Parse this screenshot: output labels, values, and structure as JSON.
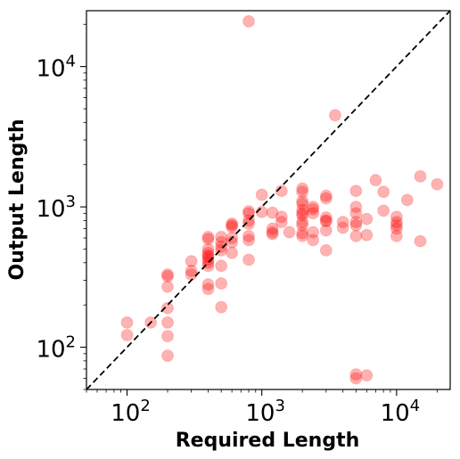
{
  "chart_data": {
    "type": "scatter",
    "title": "",
    "xlabel": "Required Length",
    "ylabel": "Output Length",
    "xscale": "log",
    "yscale": "log",
    "xlim": [
      50,
      25000
    ],
    "ylim": [
      50,
      25000
    ],
    "xticks": [
      {
        "value": 100,
        "base": "10",
        "exp": "2"
      },
      {
        "value": 1000,
        "base": "10",
        "exp": "3"
      },
      {
        "value": 10000,
        "base": "10",
        "exp": "4"
      }
    ],
    "yticks": [
      {
        "value": 100,
        "base": "10",
        "exp": "2"
      },
      {
        "value": 1000,
        "base": "10",
        "exp": "3"
      },
      {
        "value": 10000,
        "base": "10",
        "exp": "4"
      }
    ],
    "reference_line": {
      "style": "dashed",
      "color": "#000000",
      "description": "y = x"
    },
    "grid": false,
    "legend": "none",
    "marker_color": "#ff0000",
    "points": [
      {
        "x": 100,
        "y": 150
      },
      {
        "x": 100,
        "y": 122
      },
      {
        "x": 150,
        "y": 150
      },
      {
        "x": 200,
        "y": 330
      },
      {
        "x": 200,
        "y": 320
      },
      {
        "x": 200,
        "y": 270
      },
      {
        "x": 200,
        "y": 190
      },
      {
        "x": 200,
        "y": 150
      },
      {
        "x": 200,
        "y": 120
      },
      {
        "x": 200,
        "y": 87
      },
      {
        "x": 300,
        "y": 410
      },
      {
        "x": 300,
        "y": 350
      },
      {
        "x": 300,
        "y": 330
      },
      {
        "x": 400,
        "y": 610
      },
      {
        "x": 400,
        "y": 590
      },
      {
        "x": 400,
        "y": 500
      },
      {
        "x": 400,
        "y": 470
      },
      {
        "x": 400,
        "y": 450
      },
      {
        "x": 400,
        "y": 440
      },
      {
        "x": 400,
        "y": 420
      },
      {
        "x": 400,
        "y": 400
      },
      {
        "x": 400,
        "y": 380
      },
      {
        "x": 400,
        "y": 280
      },
      {
        "x": 400,
        "y": 260
      },
      {
        "x": 500,
        "y": 610
      },
      {
        "x": 500,
        "y": 560
      },
      {
        "x": 500,
        "y": 520
      },
      {
        "x": 500,
        "y": 490
      },
      {
        "x": 500,
        "y": 380
      },
      {
        "x": 500,
        "y": 285
      },
      {
        "x": 500,
        "y": 193
      },
      {
        "x": 600,
        "y": 760
      },
      {
        "x": 600,
        "y": 740
      },
      {
        "x": 600,
        "y": 720
      },
      {
        "x": 600,
        "y": 600
      },
      {
        "x": 600,
        "y": 560
      },
      {
        "x": 600,
        "y": 470
      },
      {
        "x": 800,
        "y": 930
      },
      {
        "x": 800,
        "y": 900
      },
      {
        "x": 800,
        "y": 800
      },
      {
        "x": 800,
        "y": 760
      },
      {
        "x": 800,
        "y": 620
      },
      {
        "x": 800,
        "y": 580
      },
      {
        "x": 800,
        "y": 420
      },
      {
        "x": 800,
        "y": 21000
      },
      {
        "x": 1000,
        "y": 1220
      },
      {
        "x": 1000,
        "y": 920
      },
      {
        "x": 1200,
        "y": 910
      },
      {
        "x": 1200,
        "y": 700
      },
      {
        "x": 1200,
        "y": 660
      },
      {
        "x": 1200,
        "y": 640
      },
      {
        "x": 1400,
        "y": 1300
      },
      {
        "x": 1400,
        "y": 850
      },
      {
        "x": 1400,
        "y": 780
      },
      {
        "x": 1600,
        "y": 660
      },
      {
        "x": 2000,
        "y": 1350
      },
      {
        "x": 2000,
        "y": 1280
      },
      {
        "x": 2000,
        "y": 1100
      },
      {
        "x": 2000,
        "y": 1050
      },
      {
        "x": 2000,
        "y": 950
      },
      {
        "x": 2000,
        "y": 900
      },
      {
        "x": 2000,
        "y": 870
      },
      {
        "x": 2000,
        "y": 780
      },
      {
        "x": 2000,
        "y": 740
      },
      {
        "x": 2000,
        "y": 650
      },
      {
        "x": 2000,
        "y": 620
      },
      {
        "x": 2400,
        "y": 1000
      },
      {
        "x": 2400,
        "y": 960
      },
      {
        "x": 2400,
        "y": 900
      },
      {
        "x": 2400,
        "y": 660
      },
      {
        "x": 2400,
        "y": 580
      },
      {
        "x": 3000,
        "y": 1200
      },
      {
        "x": 3000,
        "y": 1150
      },
      {
        "x": 3000,
        "y": 840
      },
      {
        "x": 3000,
        "y": 800
      },
      {
        "x": 3000,
        "y": 790
      },
      {
        "x": 3000,
        "y": 680
      },
      {
        "x": 3000,
        "y": 490
      },
      {
        "x": 3500,
        "y": 4500
      },
      {
        "x": 4000,
        "y": 780
      },
      {
        "x": 4000,
        "y": 710
      },
      {
        "x": 5000,
        "y": 1300
      },
      {
        "x": 5000,
        "y": 1000
      },
      {
        "x": 5000,
        "y": 900
      },
      {
        "x": 5000,
        "y": 780
      },
      {
        "x": 5000,
        "y": 740
      },
      {
        "x": 5000,
        "y": 620
      },
      {
        "x": 5000,
        "y": 64
      },
      {
        "x": 5000,
        "y": 60
      },
      {
        "x": 6000,
        "y": 820
      },
      {
        "x": 6000,
        "y": 630
      },
      {
        "x": 6000,
        "y": 63
      },
      {
        "x": 7000,
        "y": 1550
      },
      {
        "x": 8000,
        "y": 1280
      },
      {
        "x": 8000,
        "y": 940
      },
      {
        "x": 10000,
        "y": 850
      },
      {
        "x": 10000,
        "y": 780
      },
      {
        "x": 10000,
        "y": 740
      },
      {
        "x": 10000,
        "y": 700
      },
      {
        "x": 10000,
        "y": 620
      },
      {
        "x": 12000,
        "y": 1120
      },
      {
        "x": 15000,
        "y": 1650
      },
      {
        "x": 15000,
        "y": 570
      },
      {
        "x": 20000,
        "y": 1450
      }
    ]
  }
}
